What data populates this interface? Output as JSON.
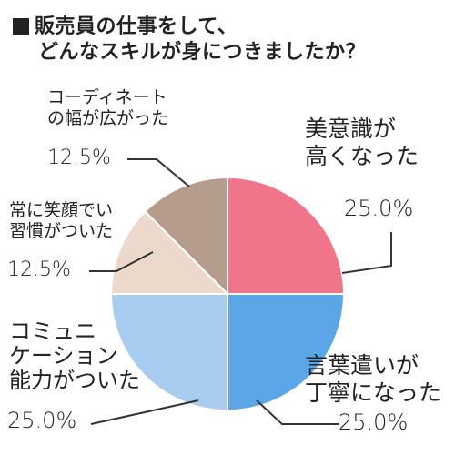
{
  "title": {
    "line1": "販売員の仕事をして、",
    "line2": "どんなスキルが身につきましたか？"
  },
  "chart_data": {
    "type": "pie",
    "title": "販売員の仕事をして、どんなスキルが身につきましたか？",
    "slices": [
      {
        "label_lines": [
          "美意識が",
          "高くなった"
        ],
        "value": 25.0,
        "display": "25.0%",
        "color": "#f0758a"
      },
      {
        "label_lines": [
          "言葉遣いが",
          "丁寧になった"
        ],
        "value": 25.0,
        "display": "25.0%",
        "color": "#5aa6e6"
      },
      {
        "label_lines": [
          "コミュニ",
          "ケーション",
          "能力がついた"
        ],
        "value": 25.0,
        "display": "25.0%",
        "color": "#a8cdf0"
      },
      {
        "label_lines": [
          "常に笑顔でい",
          "習慣がついた"
        ],
        "value": 12.5,
        "display": "12.5%",
        "color": "#ecd9cc"
      },
      {
        "label_lines": [
          "コーディネート",
          "の幅が広がった"
        ],
        "value": 12.5,
        "display": "12.5%",
        "color": "#b59c8b"
      }
    ]
  }
}
